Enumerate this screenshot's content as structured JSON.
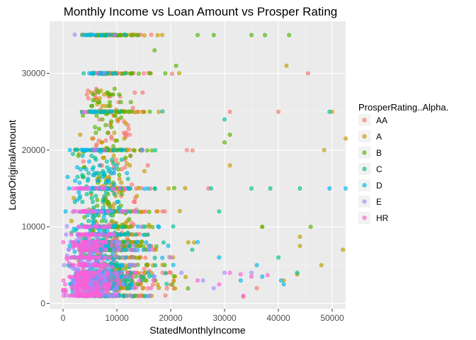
{
  "chart_data": {
    "type": "scatter",
    "title": "Monthly Income vs Loan Amount vs Prosper Rating",
    "xlabel": "StatedMonthlyIncome",
    "ylabel": "LoanOriginalAmount",
    "xlim": [
      -2500,
      52500
    ],
    "ylim": [
      -700,
      36800
    ],
    "xticks": [
      0,
      10000,
      20000,
      30000,
      40000,
      50000
    ],
    "xtick_labels": [
      "0",
      "10000",
      "20000",
      "30000",
      "40000",
      "50000"
    ],
    "yticks": [
      0,
      10000,
      20000,
      30000
    ],
    "ytick_labels": [
      "0",
      "10000",
      "20000",
      "30000"
    ],
    "grid": true,
    "legend": {
      "title": "ProsperRating..Alpha.",
      "position": "right"
    },
    "series": [
      {
        "name": "AA",
        "color": "#F8766D",
        "center_income": 9000,
        "spread": 5000,
        "points": [
          [
            45500,
            30000
          ],
          [
            40000,
            25000
          ],
          [
            31000,
            25000
          ],
          [
            23000,
            20000
          ],
          [
            27000,
            15000
          ],
          [
            15000,
            30000
          ],
          [
            12000,
            10000
          ],
          [
            33500,
            900
          ],
          [
            36000,
            2000
          ],
          [
            20000,
            4000
          ]
        ]
      },
      {
        "name": "A",
        "color": "#C49A00",
        "center_income": 8500,
        "spread": 5000,
        "points": [
          [
            41500,
            31000
          ],
          [
            50000,
            25000
          ],
          [
            52500,
            21500
          ],
          [
            48500,
            20000
          ],
          [
            37000,
            10000
          ],
          [
            44000,
            7500
          ],
          [
            52000,
            7000
          ],
          [
            48000,
            5000
          ],
          [
            41000,
            3000
          ],
          [
            43500,
            3800
          ],
          [
            44000,
            8700
          ],
          [
            31000,
            18000
          ]
        ]
      },
      {
        "name": "B",
        "color": "#53B400",
        "center_income": 8200,
        "spread": 4500,
        "points": [
          [
            42000,
            35000
          ],
          [
            37500,
            35000
          ],
          [
            35000,
            35000
          ],
          [
            28000,
            35000
          ],
          [
            25000,
            35000
          ],
          [
            21000,
            31000
          ],
          [
            19000,
            30000
          ],
          [
            17000,
            33000
          ],
          [
            30000,
            21000
          ],
          [
            37000,
            10000
          ],
          [
            46000,
            10000
          ],
          [
            31000,
            22000
          ]
        ]
      },
      {
        "name": "C",
        "color": "#00C094",
        "center_income": 7000,
        "spread": 4500,
        "points": [
          [
            49500,
            25000
          ],
          [
            30000,
            24000
          ],
          [
            27500,
            15000
          ],
          [
            35000,
            15000
          ],
          [
            38500,
            15000
          ],
          [
            44000,
            15000
          ],
          [
            40000,
            6000
          ],
          [
            43500,
            4000
          ],
          [
            24000,
            7000
          ],
          [
            29000,
            12000
          ]
        ]
      },
      {
        "name": "D",
        "color": "#00B6EB",
        "center_income": 6000,
        "spread": 4500,
        "points": [
          [
            49500,
            15000
          ],
          [
            52500,
            15000
          ],
          [
            41000,
            2500
          ],
          [
            40500,
            3000
          ],
          [
            37000,
            3500
          ],
          [
            33000,
            3000
          ],
          [
            25000,
            8000
          ],
          [
            29000,
            6000
          ],
          [
            36000,
            5000
          ]
        ]
      },
      {
        "name": "E",
        "color": "#A58AFF",
        "center_income": 5000,
        "spread": 4000,
        "points": [
          [
            22000,
            4000
          ],
          [
            26000,
            3000
          ],
          [
            30000,
            4000
          ],
          [
            35000,
            4000
          ],
          [
            28000,
            2000
          ],
          [
            20000,
            6000
          ]
        ]
      },
      {
        "name": "HR",
        "color": "#FB61D7",
        "center_income": 4500,
        "spread": 4000,
        "points": [
          [
            33000,
            3800
          ],
          [
            31000,
            4000
          ],
          [
            35000,
            3500
          ],
          [
            38000,
            3700
          ],
          [
            33500,
            1000
          ],
          [
            29000,
            2500
          ],
          [
            25000,
            3000
          ]
        ]
      }
    ],
    "horizontal_bands": [
      1000,
      2000,
      2500,
      3000,
      3500,
      4000,
      5000,
      6000,
      7000,
      7500,
      8000,
      9000,
      10000,
      12000,
      15000,
      20000,
      25000,
      30000,
      35000
    ],
    "band_extent": [
      [
        1000,
        26000
      ],
      [
        2000,
        36000
      ],
      [
        2500,
        25000
      ],
      [
        3000,
        33000
      ],
      [
        3500,
        30000
      ],
      [
        4000,
        40000
      ],
      [
        5000,
        38000
      ],
      [
        6000,
        25000
      ],
      [
        7000,
        22000
      ],
      [
        7500,
        20000
      ],
      [
        8000,
        26000
      ],
      [
        9000,
        18000
      ],
      [
        10000,
        46000
      ],
      [
        12000,
        24000
      ],
      [
        15000,
        52500
      ],
      [
        20000,
        40000
      ],
      [
        25000,
        50000
      ],
      [
        30000,
        35000
      ],
      [
        35000,
        42000
      ]
    ]
  }
}
